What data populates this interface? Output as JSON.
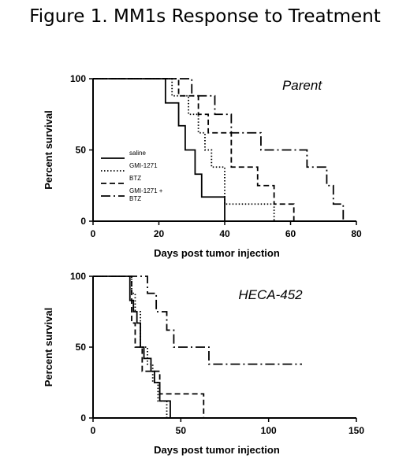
{
  "title": "Figure 1. MM1s Response to Treatment",
  "chart_data": [
    {
      "type": "line",
      "step": true,
      "panel_label": "Parent",
      "xlabel": "Days post tumor injection",
      "ylabel": "Percent survival",
      "xlim": [
        0,
        80
      ],
      "ylim": [
        0,
        100
      ],
      "xticks": [
        0,
        20,
        40,
        60,
        80
      ],
      "yticks": [
        0,
        50,
        100
      ],
      "legend": {
        "placement": "left",
        "entries": [
          "saline",
          "GMI-1271",
          "BTZ",
          "GMI-1271 +\nBTZ"
        ]
      },
      "series": [
        {
          "name": "saline",
          "style": "solid",
          "x": [
            0,
            19,
            22,
            26,
            28,
            31,
            33,
            34,
            40
          ],
          "y": [
            100,
            100,
            83,
            67,
            50,
            33,
            17,
            17,
            0
          ]
        },
        {
          "name": "GMI-1271",
          "style": "dotted",
          "x": [
            0,
            21,
            24,
            29,
            32,
            34,
            36,
            40,
            55
          ],
          "y": [
            100,
            100,
            88,
            75,
            62,
            50,
            38,
            12,
            0
          ]
        },
        {
          "name": "BTZ",
          "style": "dashed",
          "x": [
            0,
            22,
            26,
            32,
            35,
            42,
            50,
            55,
            61
          ],
          "y": [
            100,
            100,
            88,
            75,
            62,
            38,
            25,
            12,
            0
          ]
        },
        {
          "name": "GMI-1271 +\nBTZ",
          "style": "dashdot",
          "x": [
            0,
            24,
            30,
            37,
            42,
            45,
            51,
            55,
            65,
            71,
            73,
            76
          ],
          "y": [
            100,
            100,
            88,
            75,
            62,
            62,
            50,
            50,
            38,
            25,
            12,
            0
          ]
        }
      ]
    },
    {
      "type": "line",
      "step": true,
      "panel_label": "HECA-452",
      "xlabel": "Days post tumor injection",
      "ylabel": "Percent survival",
      "xlim": [
        0,
        150
      ],
      "ylim": [
        0,
        100
      ],
      "xticks": [
        0,
        50,
        100,
        150
      ],
      "yticks": [
        0,
        50,
        100
      ],
      "series": [
        {
          "name": "saline",
          "style": "solid",
          "x": [
            0,
            19,
            21,
            23,
            25,
            27,
            29,
            33,
            35,
            38,
            40,
            44
          ],
          "y": [
            100,
            100,
            83,
            75,
            67,
            50,
            42,
            33,
            25,
            12,
            12,
            0
          ]
        },
        {
          "name": "GMI-1271",
          "style": "dotted",
          "x": [
            0,
            20,
            22,
            24,
            27,
            31,
            34,
            37,
            40,
            42
          ],
          "y": [
            100,
            100,
            88,
            75,
            50,
            38,
            25,
            12,
            12,
            0
          ]
        },
        {
          "name": "BTZ",
          "style": "dashed",
          "x": [
            0,
            20,
            22,
            24,
            28,
            33,
            38,
            44,
            63
          ],
          "y": [
            100,
            100,
            67,
            50,
            33,
            33,
            17,
            17,
            0
          ]
        },
        {
          "name": "GMI-1271 +\nBTZ",
          "style": "dashdot",
          "x": [
            0,
            28,
            31,
            36,
            42,
            46,
            66,
            119
          ],
          "y": [
            100,
            100,
            88,
            75,
            62,
            50,
            38,
            38
          ]
        }
      ]
    }
  ]
}
